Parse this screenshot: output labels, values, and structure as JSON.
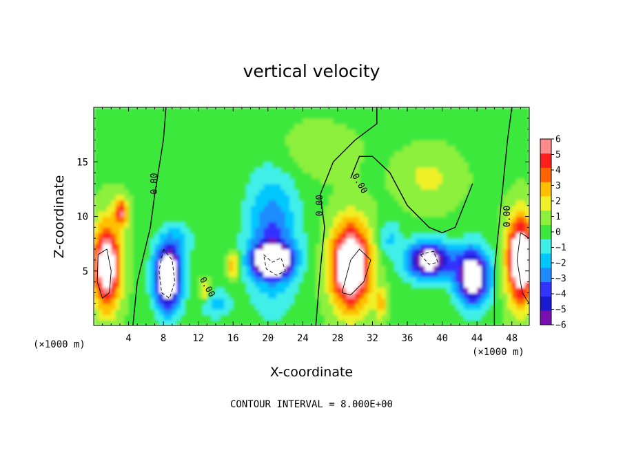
{
  "chart_data": {
    "type": "heatmap",
    "title": "vertical velocity",
    "xlabel": "X-coordinate",
    "ylabel": "Z-coordinate",
    "x_unit": "(×1000 m)",
    "y_unit": "(×1000 m)",
    "xlim": [
      0,
      50
    ],
    "ylim": [
      0,
      20
    ],
    "x_ticks": [
      4,
      8,
      12,
      16,
      20,
      24,
      28,
      32,
      36,
      40,
      44,
      48
    ],
    "y_ticks": [
      5,
      10,
      15
    ],
    "colorbar": {
      "min": -6,
      "max": 6,
      "ticks": [
        6,
        5,
        4,
        3,
        2,
        1,
        0,
        -1,
        -2,
        -3,
        -4,
        -5,
        -6
      ],
      "placement": "right",
      "colors": [
        "#7a0fb0",
        "#1a1ad0",
        "#3333ff",
        "#1e8cff",
        "#00c8ff",
        "#40f0e8",
        "#3ce83c",
        "#8cf03c",
        "#f0f028",
        "#ffc000",
        "#ff6400",
        "#ff1e1e",
        "#ff8c8c"
      ]
    },
    "contour_label": "0.00",
    "note": "CONTOUR INTERVAL = 8.000E+00",
    "cells": [
      {
        "x": 1.5,
        "z": 5.5,
        "v": 8,
        "sx": 1.8,
        "sz": 4.5
      },
      {
        "x": 3.2,
        "z": 10.5,
        "v": 5,
        "sx": 0.9,
        "sz": 1.5
      },
      {
        "x": 8.5,
        "z": 4.5,
        "v": -10,
        "sx": 1.8,
        "sz": 3.5
      },
      {
        "x": 12.8,
        "z": 3,
        "v": 2.5,
        "sx": 0.8,
        "sz": 1.2
      },
      {
        "x": 16,
        "z": 5.5,
        "v": 3,
        "sx": 0.8,
        "sz": 1.6
      },
      {
        "x": 20.5,
        "z": 8,
        "v": -4,
        "sx": 3.5,
        "sz": 7
      },
      {
        "x": 20.5,
        "z": 6,
        "v": -10,
        "sx": 2.5,
        "sz": 1.6
      },
      {
        "x": 29.5,
        "z": 5.5,
        "v": 9,
        "sx": 2.6,
        "sz": 4.5
      },
      {
        "x": 33,
        "z": 2,
        "v": 3,
        "sx": 0.8,
        "sz": 1.5
      },
      {
        "x": 38.5,
        "z": 6,
        "v": -8,
        "sx": 3,
        "sz": 2
      },
      {
        "x": 43.5,
        "z": 4.5,
        "v": -9,
        "sx": 2.2,
        "sz": 3
      },
      {
        "x": 49,
        "z": 6,
        "v": 9,
        "sx": 1.8,
        "sz": 4.5
      },
      {
        "x": 38.5,
        "z": 13.5,
        "v": 1.5,
        "sx": 4,
        "sz": 3
      },
      {
        "x": 25,
        "z": 16,
        "v": 0.8,
        "sx": 6,
        "sz": 3
      },
      {
        "x": 10,
        "z": 8,
        "v": -1.5,
        "sx": 2,
        "sz": 2
      },
      {
        "x": 14,
        "z": 2,
        "v": -2.5,
        "sx": 2,
        "sz": 1.5
      },
      {
        "x": 34,
        "z": 8,
        "v": -2,
        "sx": 1.5,
        "sz": 2
      }
    ],
    "zero_contours": [
      [
        [
          4.5,
          0
        ],
        [
          5,
          4
        ],
        [
          6.5,
          9
        ],
        [
          7,
          12
        ],
        [
          7.5,
          14.5
        ],
        [
          8,
          17
        ],
        [
          8.3,
          20
        ]
      ],
      [
        [
          25.5,
          0
        ],
        [
          26,
          5
        ],
        [
          26.5,
          9
        ],
        [
          26,
          12
        ],
        [
          27.5,
          15
        ],
        [
          30,
          17
        ],
        [
          32.5,
          18.5
        ],
        [
          32.5,
          20
        ]
      ],
      [
        [
          46,
          0
        ],
        [
          46,
          5
        ],
        [
          46.5,
          9
        ],
        [
          47,
          13
        ],
        [
          47.5,
          17
        ],
        [
          48,
          20
        ]
      ],
      [
        [
          29.5,
          13.5
        ],
        [
          30.5,
          15.5
        ],
        [
          32,
          15.5
        ],
        [
          34,
          14
        ],
        [
          36,
          11
        ],
        [
          38.5,
          9
        ],
        [
          40,
          8.5
        ],
        [
          41.5,
          9
        ],
        [
          43,
          12
        ],
        [
          43.5,
          13
        ]
      ]
    ],
    "contour_labels": [
      {
        "x": 7,
        "z": 13,
        "rot": -90
      },
      {
        "x": 26,
        "z": 11,
        "rot": -90
      },
      {
        "x": 30.5,
        "z": 13,
        "rot": 60
      },
      {
        "x": 47.5,
        "z": 10,
        "rot": -90
      },
      {
        "x": 13,
        "z": 3.5,
        "rot": 60
      }
    ],
    "neg_contours": [
      [
        [
          8,
          7
        ],
        [
          7.5,
          5
        ],
        [
          7.8,
          3
        ],
        [
          8.7,
          2.5
        ],
        [
          9.3,
          4
        ],
        [
          9,
          6
        ],
        [
          8,
          7
        ]
      ],
      [
        [
          19.5,
          6.5
        ],
        [
          20.5,
          5.8
        ],
        [
          21.5,
          6.2
        ],
        [
          22,
          5
        ],
        [
          21,
          4.6
        ],
        [
          19.8,
          5.2
        ],
        [
          19.5,
          6.5
        ]
      ],
      [
        [
          37.5,
          6.5
        ],
        [
          38.5,
          5.6
        ],
        [
          39.5,
          5.8
        ],
        [
          39,
          6.8
        ],
        [
          37.5,
          6.5
        ]
      ]
    ],
    "pos_contours": [
      [
        [
          0.5,
          6.5
        ],
        [
          1.5,
          7
        ],
        [
          2,
          5
        ],
        [
          1.8,
          3
        ],
        [
          1,
          2.5
        ],
        [
          0.4,
          4
        ],
        [
          0.5,
          6.5
        ]
      ],
      [
        [
          28.5,
          3
        ],
        [
          29.5,
          6
        ],
        [
          30.5,
          7
        ],
        [
          31.8,
          6
        ],
        [
          31,
          4
        ],
        [
          29.5,
          2.8
        ],
        [
          28.5,
          3
        ]
      ],
      [
        [
          49,
          8.5
        ],
        [
          50,
          8
        ],
        [
          50,
          2
        ],
        [
          49.2,
          3
        ],
        [
          48.6,
          6
        ],
        [
          49,
          8.5
        ]
      ]
    ]
  }
}
